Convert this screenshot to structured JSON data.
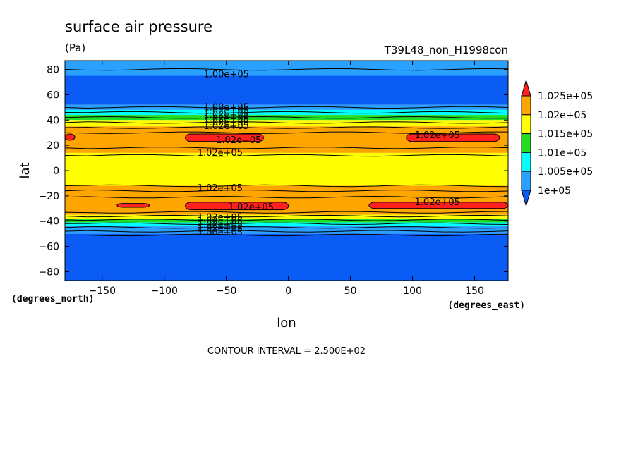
{
  "chart_data": {
    "type": "heatmap",
    "title": "surface air pressure",
    "subtitle": "(Pa)",
    "run_label": "T39L48_non_H1998con",
    "xlabel": "lon",
    "ylabel": "lat",
    "x_unit": "(degrees_east)",
    "y_unit": "(degrees_north)",
    "xlim": [
      -180,
      177
    ],
    "ylim": [
      -87,
      87
    ],
    "x_ticks": [
      -150,
      -100,
      -50,
      0,
      50,
      100,
      150
    ],
    "y_ticks": [
      -80,
      -60,
      -40,
      -20,
      0,
      20,
      40,
      60,
      80
    ],
    "x_tick_labels": [
      "−150",
      "−100",
      "−50",
      "0",
      "50",
      "100",
      "150"
    ],
    "y_tick_labels": [
      "−80",
      "−60",
      "−40",
      "−20",
      "0",
      "20",
      "40",
      "60",
      "80"
    ],
    "contour_interval_text": "CONTOUR INTERVAL = 2.500E+02",
    "colorbar": {
      "labels": [
        "1.025e+05",
        "1.02e+05",
        "1.015e+05",
        "1.01e+05",
        "1.005e+05",
        "1e+05"
      ],
      "colors": [
        "#ff2020",
        "#ffa500",
        "#ffff00",
        "#22dd22",
        "#00ffff",
        "#2aa0ff",
        "#0a5cf5"
      ]
    },
    "bands": [
      {
        "lat": [
          75,
          87
        ],
        "color": "#2aa0ff"
      },
      {
        "lat": [
          52,
          75
        ],
        "color": "#0a5cf5"
      },
      {
        "lat": [
          48,
          52
        ],
        "color": "#2aa0ff"
      },
      {
        "lat": [
          44,
          48
        ],
        "color": "#00ffff"
      },
      {
        "lat": [
          40,
          44
        ],
        "color": "#22dd22"
      },
      {
        "lat": [
          35,
          40
        ],
        "color": "#ffff00"
      },
      {
        "lat": [
          14,
          35
        ],
        "color": "#ffa500"
      },
      {
        "lat": [
          -12,
          14
        ],
        "color": "#ffff00"
      },
      {
        "lat": [
          -35,
          -12
        ],
        "color": "#ffa500"
      },
      {
        "lat": [
          -38,
          -35
        ],
        "color": "#ffff00"
      },
      {
        "lat": [
          -41,
          -38
        ],
        "color": "#22dd22"
      },
      {
        "lat": [
          -44,
          -41
        ],
        "color": "#00ffff"
      },
      {
        "lat": [
          -50,
          -44
        ],
        "color": "#2aa0ff"
      },
      {
        "lat": [
          -87,
          -50
        ],
        "color": "#0a5cf5"
      }
    ],
    "red_patches": [
      {
        "lon": [
          -180,
          -172
        ],
        "lat": [
          24,
          29
        ]
      },
      {
        "lon": [
          -83,
          -20
        ],
        "lat": [
          23,
          29
        ]
      },
      {
        "lon": [
          95,
          170
        ],
        "lat": [
          23,
          29
        ]
      },
      {
        "lon": [
          -138,
          -112
        ],
        "lat": [
          -29,
          -26
        ]
      },
      {
        "lon": [
          -83,
          0
        ],
        "lat": [
          -31,
          -25
        ]
      },
      {
        "lon": [
          65,
          177
        ],
        "lat": [
          -30,
          -25
        ]
      }
    ],
    "contour_lats": [
      80,
      50,
      46,
      42,
      38,
      34,
      30,
      18,
      12,
      -12,
      -16,
      -21,
      -33,
      -36,
      -39,
      -42,
      -45,
      -48,
      -51
    ],
    "contour_labels": [
      {
        "text": "1.00e+05",
        "lon": -50,
        "lat": 76
      },
      {
        "text": "1.00e+05",
        "lon": -50,
        "lat": 50
      },
      {
        "text": "1.02e+05",
        "lon": -50,
        "lat": 47
      },
      {
        "text": "1.02e+05",
        "lon": -50,
        "lat": 44
      },
      {
        "text": "1.02e+05",
        "lon": -50,
        "lat": 41
      },
      {
        "text": "1.02e+05",
        "lon": -50,
        "lat": 38
      },
      {
        "text": "1.02e+05",
        "lon": -50,
        "lat": 35
      },
      {
        "text": "1.02e+05",
        "lon": -40,
        "lat": 24
      },
      {
        "text": "1.02e+05",
        "lon": 120,
        "lat": 28
      },
      {
        "text": "1.02e+05",
        "lon": -55,
        "lat": 14
      },
      {
        "text": "1.02e+05",
        "lon": -55,
        "lat": -14
      },
      {
        "text": "1.02e+05",
        "lon": -30,
        "lat": -29
      },
      {
        "text": "1.02e+05",
        "lon": 120,
        "lat": -25
      },
      {
        "text": "1.02e+05",
        "lon": -55,
        "lat": -37
      },
      {
        "text": "1.02e+05",
        "lon": -55,
        "lat": -40
      },
      {
        "text": "1.02e+05",
        "lon": -55,
        "lat": -43
      },
      {
        "text": "1.02e+05",
        "lon": -55,
        "lat": -46
      },
      {
        "text": "1.00e+05",
        "lon": -55,
        "lat": -49
      }
    ]
  }
}
